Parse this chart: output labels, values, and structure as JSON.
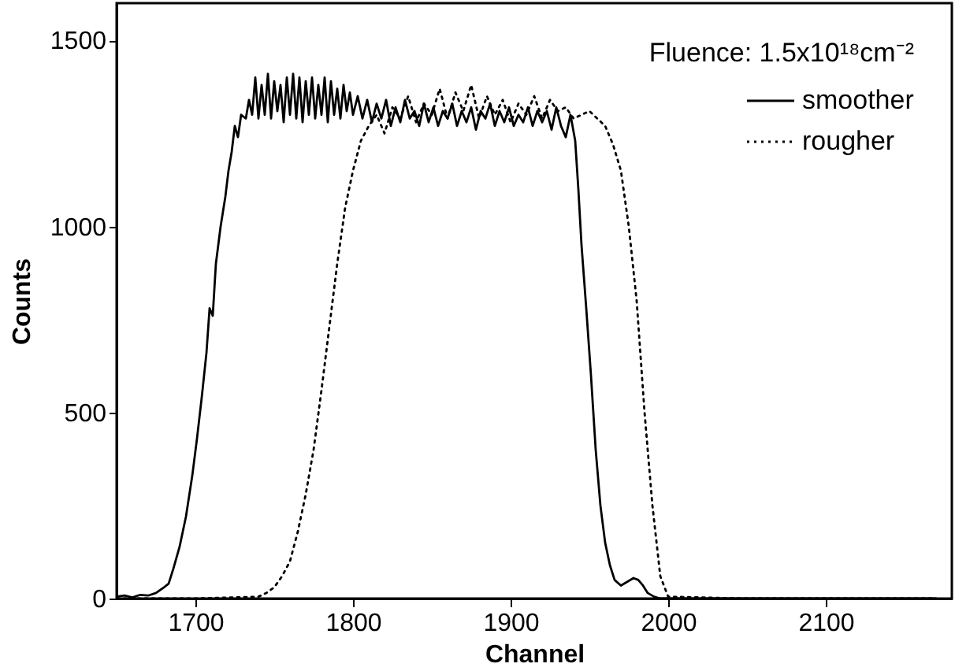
{
  "chart_data": {
    "type": "line",
    "xlabel": "Channel",
    "ylabel": "Counts",
    "legend_title": "Fluence: 1.5x10¹⁸cm⁻²",
    "legend": "top right",
    "xlim": [
      1650,
      2180
    ],
    "ylim": [
      0,
      1600
    ],
    "xticks": [
      1700,
      1800,
      1900,
      2000,
      2100
    ],
    "yticks": [
      0,
      500,
      1000,
      1500
    ],
    "series": [
      {
        "name": "smoother",
        "color": "#000000",
        "line_style": "solid",
        "x": [
          1650,
          1655,
          1660,
          1665,
          1670,
          1675,
          1680,
          1683,
          1686,
          1690,
          1694,
          1698,
          1701,
          1704,
          1707,
          1709,
          1711,
          1713,
          1716,
          1719,
          1721,
          1723,
          1725,
          1727,
          1729,
          1732,
          1734,
          1736,
          1738,
          1740,
          1742,
          1744,
          1746,
          1748,
          1750,
          1752,
          1754,
          1756,
          1758,
          1760,
          1762,
          1764,
          1766,
          1768,
          1770,
          1772,
          1774,
          1776,
          1778,
          1780,
          1782,
          1784,
          1786,
          1788,
          1790,
          1792,
          1794,
          1796,
          1798,
          1800,
          1803,
          1806,
          1809,
          1812,
          1815,
          1818,
          1821,
          1824,
          1827,
          1830,
          1833,
          1836,
          1839,
          1842,
          1845,
          1848,
          1851,
          1854,
          1857,
          1860,
          1863,
          1866,
          1869,
          1872,
          1875,
          1878,
          1881,
          1884,
          1887,
          1890,
          1893,
          1896,
          1899,
          1902,
          1905,
          1908,
          1911,
          1914,
          1917,
          1920,
          1923,
          1926,
          1929,
          1932,
          1935,
          1938,
          1941,
          1943,
          1945,
          1948,
          1951,
          1954,
          1957,
          1960,
          1963,
          1966,
          1970,
          1974,
          1978,
          1981,
          1984,
          1987,
          1991,
          1995,
          2050,
          2170
        ],
        "values": [
          5,
          8,
          3,
          10,
          8,
          15,
          30,
          40,
          80,
          140,
          220,
          330,
          430,
          540,
          660,
          780,
          760,
          900,
          1000,
          1080,
          1150,
          1200,
          1270,
          1240,
          1300,
          1290,
          1340,
          1300,
          1400,
          1290,
          1380,
          1300,
          1410,
          1290,
          1390,
          1310,
          1380,
          1280,
          1400,
          1300,
          1410,
          1290,
          1400,
          1280,
          1390,
          1300,
          1400,
          1290,
          1380,
          1300,
          1400,
          1280,
          1390,
          1300,
          1370,
          1290,
          1380,
          1310,
          1360,
          1300,
          1350,
          1290,
          1340,
          1280,
          1330,
          1290,
          1340,
          1270,
          1320,
          1280,
          1340,
          1290,
          1310,
          1270,
          1330,
          1280,
          1320,
          1270,
          1310,
          1290,
          1330,
          1270,
          1310,
          1280,
          1320,
          1260,
          1310,
          1290,
          1330,
          1270,
          1310,
          1280,
          1320,
          1270,
          1300,
          1280,
          1320,
          1270,
          1310,
          1280,
          1310,
          1260,
          1320,
          1270,
          1240,
          1300,
          1230,
          1100,
          950,
          780,
          600,
          400,
          250,
          150,
          90,
          50,
          35,
          45,
          55,
          50,
          35,
          15,
          5,
          0,
          0,
          0
        ]
      },
      {
        "name": "rougher",
        "color": "#000000",
        "line_style": "dotted",
        "x": [
          1650,
          1700,
          1740,
          1745,
          1750,
          1755,
          1760,
          1765,
          1770,
          1775,
          1780,
          1785,
          1790,
          1795,
          1800,
          1805,
          1810,
          1815,
          1820,
          1825,
          1830,
          1835,
          1840,
          1845,
          1850,
          1855,
          1860,
          1865,
          1870,
          1875,
          1880,
          1885,
          1890,
          1895,
          1900,
          1905,
          1910,
          1915,
          1920,
          1925,
          1930,
          1935,
          1940,
          1945,
          1950,
          1955,
          1960,
          1965,
          1970,
          1975,
          1980,
          1985,
          1990,
          1995,
          2000,
          2050,
          2170
        ],
        "values": [
          0,
          0,
          5,
          15,
          30,
          60,
          100,
          180,
          280,
          400,
          560,
          730,
          900,
          1050,
          1150,
          1230,
          1270,
          1300,
          1250,
          1320,
          1290,
          1350,
          1280,
          1330,
          1300,
          1370,
          1290,
          1360,
          1310,
          1380,
          1290,
          1350,
          1300,
          1340,
          1280,
          1330,
          1300,
          1350,
          1290,
          1340,
          1310,
          1320,
          1290,
          1300,
          1310,
          1290,
          1270,
          1220,
          1150,
          1000,
          800,
          500,
          250,
          60,
          5,
          0,
          0
        ]
      }
    ]
  }
}
